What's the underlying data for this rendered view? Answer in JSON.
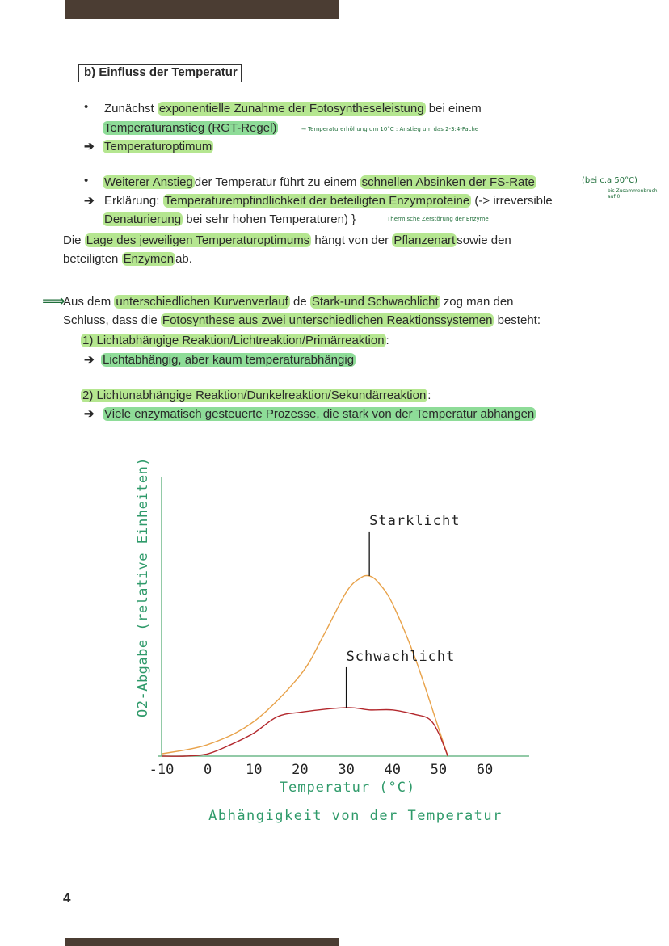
{
  "section_heading": "b) Einfluss der Temperatur",
  "bullets": {
    "b1_pre": "Zunächst",
    "b1_hl": "exponentielle Zunahme der Fotosyntheseleistung",
    "b1_post": "bei einem",
    "b1_hl2": "Temperaturanstieg (RGT-Regel)",
    "b1_note": "→ Temperaturerhöhung um 10°C : Anstieg um das 2-3:4-Fache",
    "a1": "Temperaturoptimum",
    "b2_hl": "Weiterer Anstieg",
    "b2_mid": "der Temperatur führt zu einem",
    "b2_hl2": "schnellen Absinken der FS-Rate",
    "b2_note": "(bei c.a 50°C)",
    "b2_note_small": "bis Zusammenbruch auf 0",
    "a2_pre": "Erklärung:",
    "a2_hl": "Temperaturempfindlichkeit der beteiligten Enzymproteine",
    "a2_post": "(-> irreversible",
    "a2b_hl": "Denaturierung",
    "a2b_post": "bei sehr hohen Temperaturen) }",
    "a2b_note": "Thermische Zerstörung der Enzyme"
  },
  "para1": {
    "p1": "Die",
    "hl1": "Lage des jeweiligen Temperaturoptimums",
    "p2": "hängt von der",
    "hl2": "Pflanzenart",
    "p3": "sowie den",
    "p4": "beteiligten",
    "hl3": "Enzymen",
    "p5": "ab."
  },
  "para2": {
    "arrow": "⟹",
    "p1": "Aus dem",
    "hl1": "unterschiedlichen Kurvenverlauf",
    "p2": "de",
    "hl2": "Stark-und Schwachlicht",
    "p3": "zog man den",
    "p4": "Schluss, dass die",
    "hl3": "Fotosynthese aus zwei unterschiedlichen Reaktionssystemen",
    "p5": "besteht:"
  },
  "list": {
    "i1": "1) Lichtabhängige Reaktion/Lichtreaktion/Primärreaktion",
    "i1_colon": ":",
    "a1": "Lichtabhängig, aber kaum temperaturabhängig",
    "i2": "2) Lichtunabhängige Reaktion/Dunkelreaktion/Sekundärreaktion",
    "i2_colon": ":",
    "a2": "Viele enzymatisch gesteuerte Prozesse, die stark von der Temperatur abhängen"
  },
  "chart_data": {
    "type": "line",
    "title": "Abhängigkeit von der Temperatur",
    "xlabel": "Temperatur (°C)",
    "ylabel": "O2-Abgabe (relative Einheiten)",
    "xticks": [
      "-10",
      "0",
      "10",
      "20",
      "30",
      "40",
      "50",
      "60"
    ],
    "xlim": [
      -10,
      60
    ],
    "ylim": [
      0,
      100
    ],
    "series": [
      {
        "name": "Starklicht",
        "color": "#e8a24a",
        "x": [
          -10,
          0,
          10,
          20,
          25,
          30,
          33,
          35,
          37,
          40,
          45,
          50,
          52
        ],
        "y": [
          1,
          5,
          15,
          35,
          52,
          71,
          77,
          78,
          75,
          66,
          42,
          12,
          0
        ]
      },
      {
        "name": "Schwachlicht",
        "color": "#b3282d",
        "x": [
          -10,
          -5,
          0,
          5,
          10,
          15,
          20,
          30,
          35,
          40,
          45,
          48,
          50,
          52
        ],
        "y": [
          0,
          0,
          1,
          5,
          10,
          17,
          19,
          21,
          20,
          20,
          18,
          16,
          10,
          0
        ]
      }
    ]
  }
}
